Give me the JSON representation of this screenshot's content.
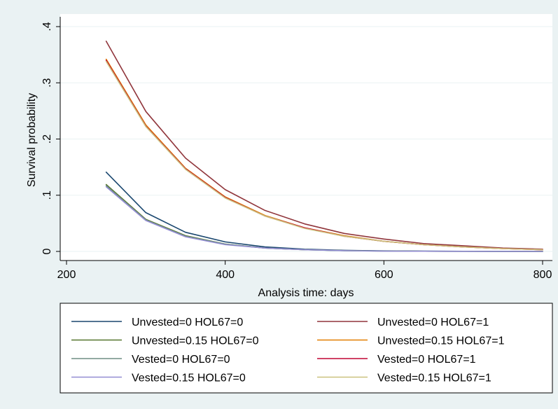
{
  "chart_data": {
    "type": "line",
    "title": "",
    "xlabel": "Analysis time: days",
    "ylabel": "Survival probability",
    "xlim": [
      200,
      800
    ],
    "ylim": [
      0,
      0.4
    ],
    "xticks": [
      200,
      400,
      600,
      800
    ],
    "xtick_labels": [
      "200",
      "400",
      "600",
      "800"
    ],
    "yticks": [
      0,
      0.1,
      0.2,
      0.3,
      0.4
    ],
    "ytick_labels": [
      "0",
      ".1",
      ".2",
      ".3",
      ".4"
    ],
    "grid": "horizontal",
    "legend_position": "bottom",
    "legend_columns": 2,
    "series": [
      {
        "name": "Unvested=0 HOL67=0",
        "color": "#1a476f",
        "x": [
          250,
          300,
          350,
          400,
          450,
          500,
          550,
          600,
          650,
          700,
          750,
          800
        ],
        "y": [
          0.141,
          0.069,
          0.034,
          0.017,
          0.008,
          0.004,
          0.002,
          0.001,
          0.0005,
          0.0003,
          0.0001,
          0.0001
        ]
      },
      {
        "name": "Unvested=0 HOL67=1",
        "color": "#90353b",
        "x": [
          250,
          300,
          350,
          400,
          450,
          500,
          550,
          600,
          650,
          700,
          750,
          800
        ],
        "y": [
          0.374,
          0.249,
          0.166,
          0.11,
          0.073,
          0.049,
          0.032,
          0.022,
          0.014,
          0.01,
          0.006,
          0.004
        ]
      },
      {
        "name": "Unvested=0.15 HOL67=0",
        "color": "#55752f",
        "x": [
          250,
          300,
          350,
          400,
          450,
          500,
          550,
          600,
          650,
          700,
          750,
          800
        ],
        "y": [
          0.119,
          0.057,
          0.028,
          0.013,
          0.006,
          0.003,
          0.0015,
          0.0007,
          0.0003,
          0.0002,
          0.0001,
          0.0
        ]
      },
      {
        "name": "Unvested=0.15 HOL67=1",
        "color": "#e37e00",
        "x": [
          250,
          300,
          350,
          400,
          450,
          500,
          550,
          600,
          650,
          700,
          750,
          800
        ],
        "y": [
          0.342,
          0.225,
          0.148,
          0.097,
          0.064,
          0.042,
          0.028,
          0.018,
          0.012,
          0.008,
          0.005,
          0.003
        ]
      },
      {
        "name": "Vested=0 HOL67=0",
        "color": "#6e8e84",
        "x": [
          250,
          300,
          350,
          400,
          450,
          500,
          550,
          600,
          650,
          700,
          750,
          800
        ],
        "y": [
          0.117,
          0.056,
          0.027,
          0.013,
          0.006,
          0.003,
          0.0014,
          0.0007,
          0.0003,
          0.0002,
          0.0001,
          0.0
        ]
      },
      {
        "name": "Vested=0 HOL67=1",
        "color": "#c10534",
        "x": [
          250,
          300,
          350,
          400,
          450,
          500,
          550,
          600,
          650,
          700,
          750,
          800
        ],
        "y": [
          0.34,
          0.223,
          0.147,
          0.096,
          0.063,
          0.042,
          0.027,
          0.018,
          0.012,
          0.008,
          0.005,
          0.003
        ]
      },
      {
        "name": "Vested=0.15 HOL67=0",
        "color": "#938dd2",
        "x": [
          250,
          300,
          350,
          400,
          450,
          500,
          550,
          600,
          650,
          700,
          750,
          800
        ],
        "y": [
          0.115,
          0.055,
          0.026,
          0.012,
          0.006,
          0.003,
          0.0013,
          0.0006,
          0.0003,
          0.0001,
          0.0001,
          0.0
        ]
      },
      {
        "name": "Vested=0.15 HOL67=1",
        "color": "#cac27e",
        "x": [
          250,
          300,
          350,
          400,
          450,
          500,
          550,
          600,
          650,
          700,
          750,
          800
        ],
        "y": [
          0.338,
          0.222,
          0.146,
          0.095,
          0.063,
          0.041,
          0.027,
          0.018,
          0.012,
          0.008,
          0.005,
          0.003
        ]
      }
    ]
  }
}
